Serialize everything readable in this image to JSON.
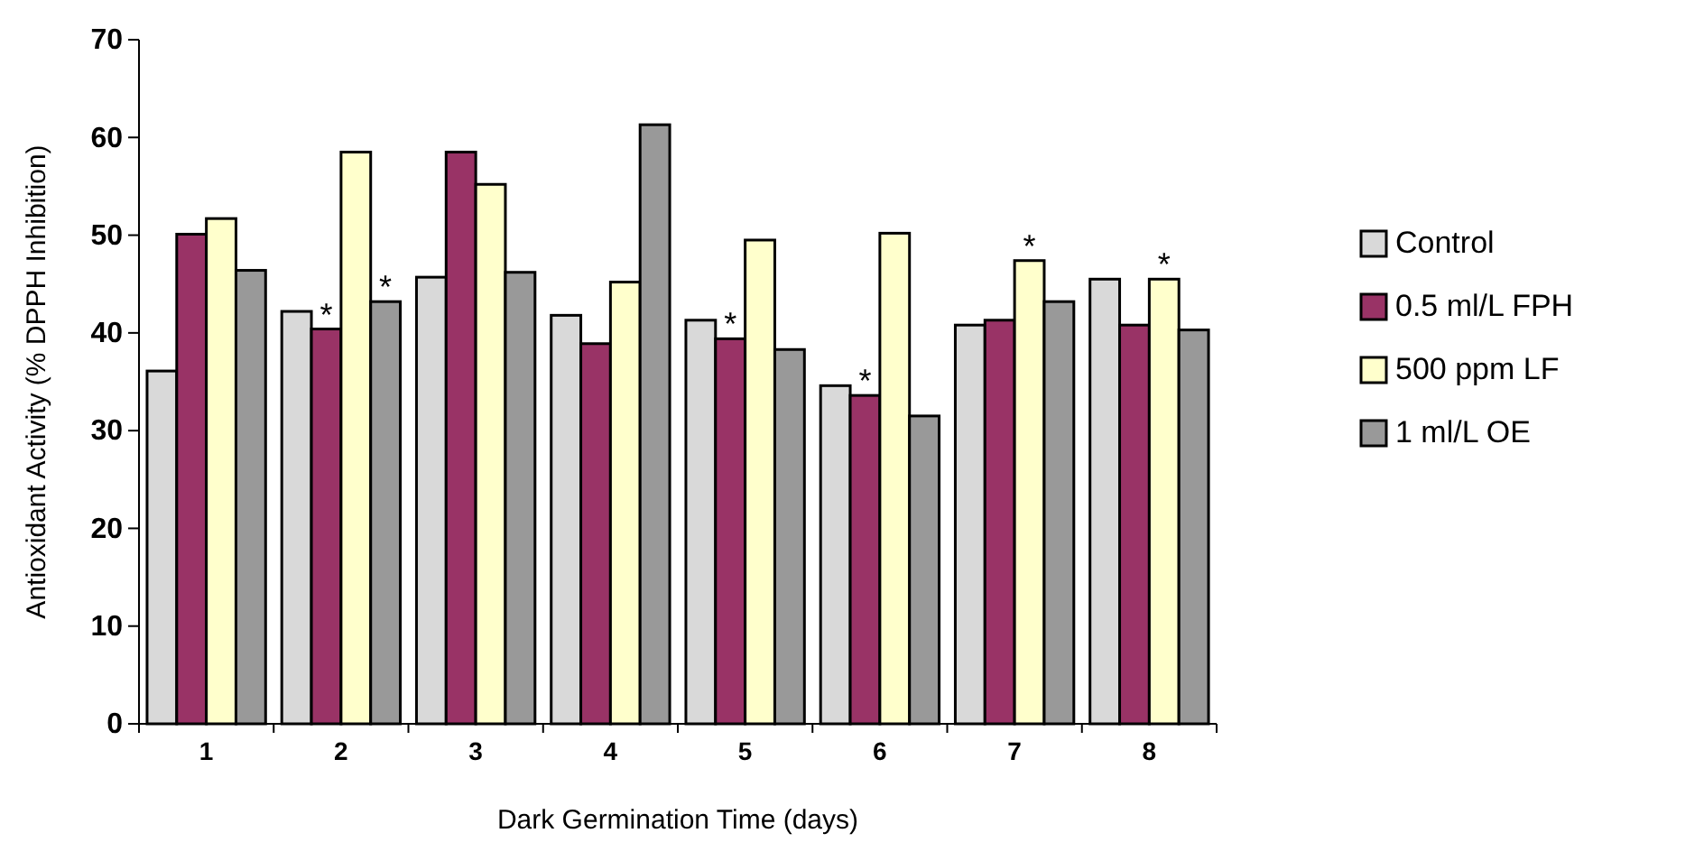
{
  "chart_data": {
    "type": "bar",
    "xlabel": "Dark Germination Time (days)",
    "ylabel": "Antioxidant Activity (% DPPH Inhibition)",
    "categories": [
      "1",
      "2",
      "3",
      "4",
      "5",
      "6",
      "7",
      "8"
    ],
    "series": [
      {
        "name": "Control",
        "color": "#d9d9d9",
        "values": [
          36.1,
          42.2,
          45.7,
          41.8,
          41.3,
          34.6,
          40.8,
          45.5
        ]
      },
      {
        "name": "0.5 ml/L FPH",
        "color": "#993366",
        "values": [
          50.1,
          40.4,
          58.5,
          38.9,
          39.4,
          33.6,
          41.3,
          40.8
        ]
      },
      {
        "name": "500 ppm LF",
        "color": "#ffffcc",
        "values": [
          51.7,
          58.5,
          55.2,
          45.2,
          49.5,
          50.2,
          47.4,
          45.5
        ]
      },
      {
        "name": "1 ml/L OE",
        "color": "#999999",
        "values": [
          46.4,
          43.2,
          46.2,
          61.3,
          38.3,
          31.5,
          43.2,
          40.3
        ]
      }
    ],
    "ylim": [
      0,
      70
    ],
    "yticks": [
      0,
      10,
      20,
      30,
      40,
      50,
      60,
      70
    ],
    "grid": false,
    "legend": "right",
    "annotations": [
      {
        "text": "*",
        "x": "2",
        "y": 40.4
      },
      {
        "text": "*",
        "x": "2",
        "y": 43.2
      },
      {
        "text": "*",
        "x": "5",
        "y": 39.4
      },
      {
        "text": "*",
        "x": "6",
        "y": 33.6
      },
      {
        "text": "*",
        "x": "7",
        "y": 47.4
      },
      {
        "text": "*",
        "x": "8",
        "y": 45.5
      }
    ]
  }
}
